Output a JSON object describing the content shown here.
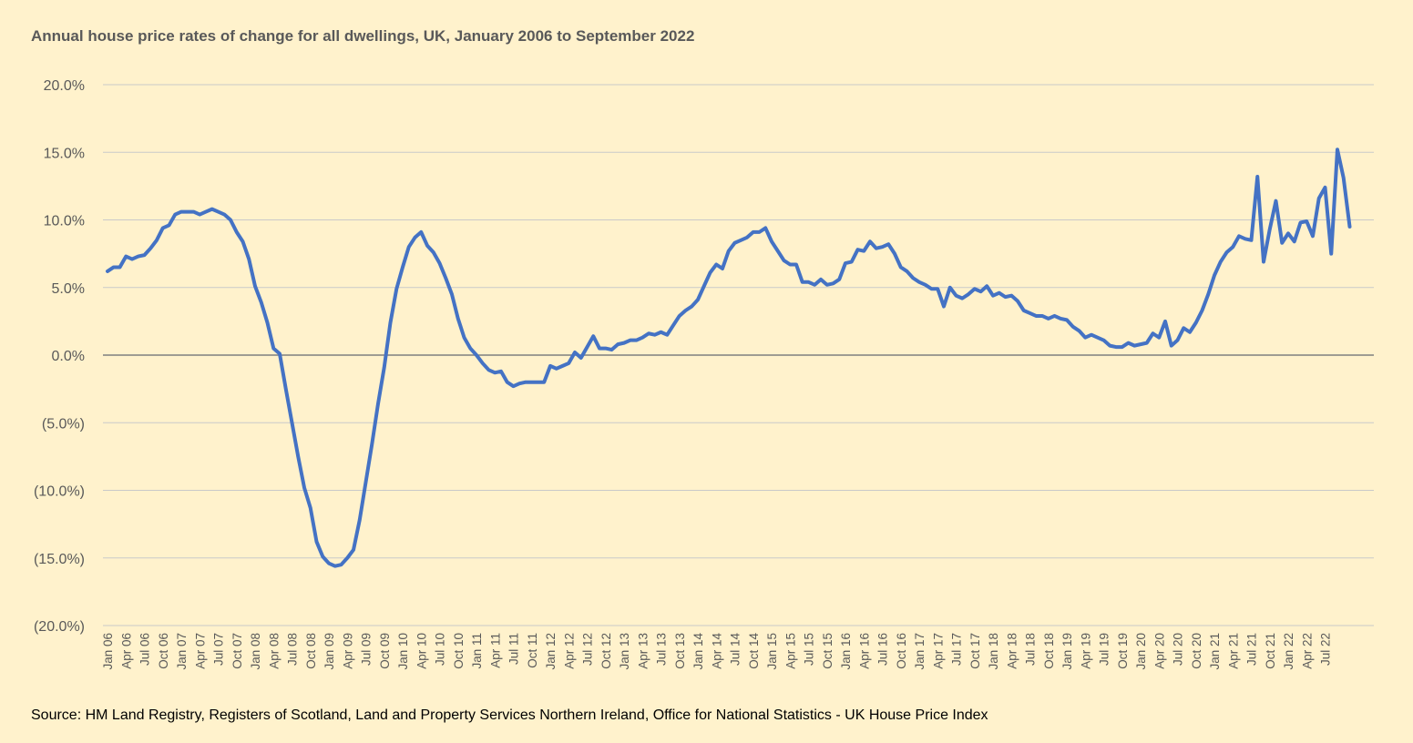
{
  "chart_data": {
    "type": "line",
    "title": "Annual house price rates of change for all dwellings, UK, January 2006 to September 2022",
    "source": "Source: HM Land Registry, Registers of Scotland, Land and Property Services Northern Ireland, Office for National Statistics - UK House Price Index",
    "ylim": [
      -20,
      20
    ],
    "y_ticks": [
      {
        "value": 20,
        "label": "20.0%"
      },
      {
        "value": 15,
        "label": "15.0%"
      },
      {
        "value": 10,
        "label": "10.0%"
      },
      {
        "value": 5,
        "label": "5.0%"
      },
      {
        "value": 0,
        "label": "0.0%"
      },
      {
        "value": -5,
        "label": "(5.0%)"
      },
      {
        "value": -10,
        "label": "(10.0%)"
      },
      {
        "value": -15,
        "label": "(15.0%)"
      },
      {
        "value": -20,
        "label": "(20.0%)"
      }
    ],
    "x_tick_labels": [
      "Jan 06",
      "Apr 06",
      "Jul 06",
      "Oct 06",
      "Jan 07",
      "Apr 07",
      "Jul 07",
      "Oct 07",
      "Jan 08",
      "Apr 08",
      "Jul 08",
      "Oct 08",
      "Jan 09",
      "Apr 09",
      "Jul 09",
      "Oct 09",
      "Jan 10",
      "Apr 10",
      "Jul 10",
      "Oct 10",
      "Jan 11",
      "Apr 11",
      "Jul 11",
      "Oct 11",
      "Jan 12",
      "Apr 12",
      "Jul 12",
      "Oct 12",
      "Jan 13",
      "Apr 13",
      "Jul 13",
      "Oct 13",
      "Jan 14",
      "Apr 14",
      "Jul 14",
      "Oct 14",
      "Jan 15",
      "Apr 15",
      "Jul 15",
      "Oct 15",
      "Jan 16",
      "Apr 16",
      "Jul 16",
      "Oct 16",
      "Jan 17",
      "Apr 17",
      "Jul 17",
      "Oct 17",
      "Jan 18",
      "Apr 18",
      "Jul 18",
      "Oct 18",
      "Jan 19",
      "Apr 19",
      "Jul 19",
      "Oct 19",
      "Jan 20",
      "Apr 20",
      "Jul 20",
      "Oct 20",
      "Jan 21",
      "Apr 21",
      "Jul 21",
      "Oct 21",
      "Jan 22",
      "Apr 22",
      "Jul 22"
    ],
    "series": [
      {
        "color": "#4472c4",
        "values": [
          6.2,
          6.5,
          6.5,
          7.3,
          7.1,
          7.3,
          7.4,
          7.9,
          8.5,
          9.4,
          9.6,
          10.4,
          10.6,
          10.6,
          10.6,
          10.4,
          10.6,
          10.8,
          10.6,
          10.4,
          10.0,
          9.1,
          8.4,
          7.1,
          5.1,
          3.9,
          2.4,
          0.5,
          0.1,
          -2.5,
          -5.0,
          -7.5,
          -9.8,
          -11.3,
          -13.8,
          -14.9,
          -15.4,
          -15.6,
          -15.5,
          -15.0,
          -14.4,
          -12.2,
          -9.4,
          -6.6,
          -3.6,
          -0.9,
          2.4,
          4.9,
          6.5,
          8.0,
          8.7,
          9.1,
          8.1,
          7.6,
          6.8,
          5.7,
          4.5,
          2.7,
          1.3,
          0.5,
          0.0,
          -0.6,
          -1.1,
          -1.3,
          -1.2,
          -2.0,
          -2.3,
          -2.1,
          -2.0,
          -2.0,
          -2.0,
          -2.0,
          -0.8,
          -1.0,
          -0.8,
          -0.6,
          0.2,
          -0.2,
          0.6,
          1.4,
          0.5,
          0.5,
          0.4,
          0.8,
          0.9,
          1.1,
          1.1,
          1.3,
          1.6,
          1.5,
          1.7,
          1.5,
          2.2,
          2.9,
          3.3,
          3.6,
          4.1,
          5.1,
          6.1,
          6.7,
          6.4,
          7.7,
          8.3,
          8.5,
          8.7,
          9.1,
          9.1,
          9.4,
          8.4,
          7.7,
          7.0,
          6.7,
          6.7,
          5.4,
          5.4,
          5.2,
          5.6,
          5.2,
          5.3,
          5.6,
          6.8,
          6.9,
          7.8,
          7.7,
          8.4,
          7.9,
          8.0,
          8.2,
          7.5,
          6.5,
          6.2,
          5.7,
          5.4,
          5.2,
          4.9,
          4.9,
          3.6,
          5.0,
          4.4,
          4.2,
          4.5,
          4.9,
          4.7,
          5.1,
          4.4,
          4.6,
          4.3,
          4.4,
          4.0,
          3.3,
          3.1,
          2.9,
          2.9,
          2.7,
          2.9,
          2.7,
          2.6,
          2.1,
          1.8,
          1.3,
          1.5,
          1.3,
          1.1,
          0.7,
          0.6,
          0.6,
          0.9,
          0.7,
          0.8,
          0.9,
          1.6,
          1.3,
          2.5,
          0.7,
          1.1,
          2.0,
          1.7,
          2.4,
          3.3,
          4.5,
          5.9,
          6.9,
          7.6,
          8.0,
          8.8,
          8.6,
          8.5,
          13.2,
          6.9,
          9.3,
          11.4,
          8.3,
          9.0,
          8.4,
          9.8,
          9.9,
          8.8,
          11.6,
          12.4,
          7.5,
          15.2,
          13.1,
          9.5
        ]
      }
    ]
  }
}
